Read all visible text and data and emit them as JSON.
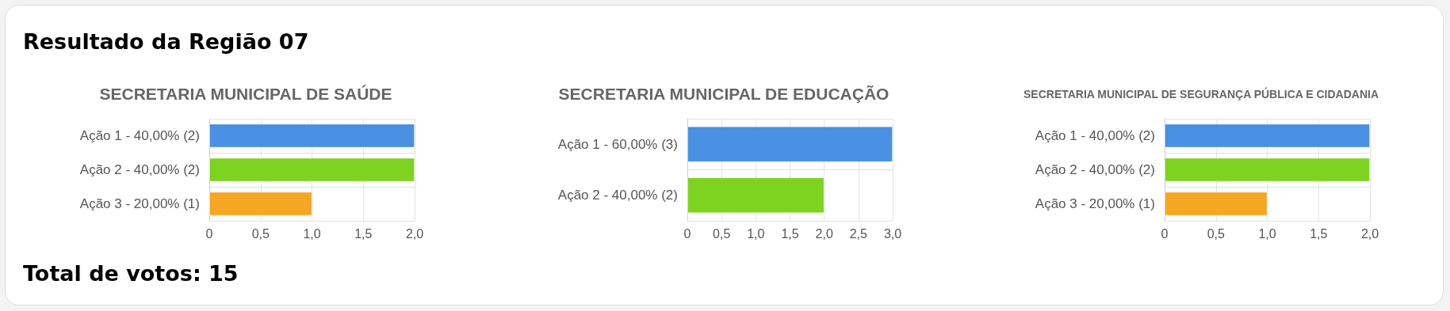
{
  "chart_data": [
    {
      "type": "other",
      "title": "Resultado da Região 07"
    },
    {
      "type": "bar",
      "orientation": "horizontal",
      "title": "SECRETARIA MUNICIPAL DE SAÚDE",
      "categories": [
        "Ação 1 - 40,00% (2)",
        "Ação 2 - 40,00% (2)",
        "Ação 3 - 20,00% (1)"
      ],
      "values": [
        2,
        2,
        1
      ],
      "colors": [
        "#4a90e2",
        "#7ed321",
        "#f5a623"
      ],
      "xlim": [
        0,
        2
      ],
      "xticks": [
        {
          "value": 0,
          "label": "0"
        },
        {
          "value": 0.5,
          "label": "0,5"
        },
        {
          "value": 1,
          "label": "1,0"
        },
        {
          "value": 1.5,
          "label": "1,5"
        },
        {
          "value": 2,
          "label": "2,0"
        }
      ],
      "grid": true
    },
    {
      "type": "bar",
      "orientation": "horizontal",
      "title": "SECRETARIA MUNICIPAL DE EDUCAÇÃO",
      "categories": [
        "Ação 1 - 60,00% (3)",
        "Ação 2 - 40,00% (2)"
      ],
      "values": [
        3,
        2
      ],
      "colors": [
        "#4a90e2",
        "#7ed321"
      ],
      "xlim": [
        0,
        3
      ],
      "xticks": [
        {
          "value": 0,
          "label": "0"
        },
        {
          "value": 0.5,
          "label": "0,5"
        },
        {
          "value": 1,
          "label": "1,0"
        },
        {
          "value": 1.5,
          "label": "1,5"
        },
        {
          "value": 2,
          "label": "2,0"
        },
        {
          "value": 2.5,
          "label": "2,5"
        },
        {
          "value": 3,
          "label": "3,0"
        }
      ],
      "grid": true
    },
    {
      "type": "bar",
      "orientation": "horizontal",
      "title": "SECRETARIA MUNICIPAL DE SEGURANÇA PÚBLICA E CIDADANIA",
      "categories": [
        "Ação 1 - 40,00% (2)",
        "Ação 2 - 40,00% (2)",
        "Ação 3 - 20,00% (1)"
      ],
      "values": [
        2,
        2,
        1
      ],
      "colors": [
        "#4a90e2",
        "#7ed321",
        "#f5a623"
      ],
      "xlim": [
        0,
        2
      ],
      "xticks": [
        {
          "value": 0,
          "label": "0"
        },
        {
          "value": 0.5,
          "label": "0,5"
        },
        {
          "value": 1,
          "label": "1,0"
        },
        {
          "value": 1.5,
          "label": "1,5"
        },
        {
          "value": 2,
          "label": "2,0"
        }
      ],
      "grid": true
    },
    {
      "type": "other",
      "title": "Total de votos: 15"
    }
  ]
}
